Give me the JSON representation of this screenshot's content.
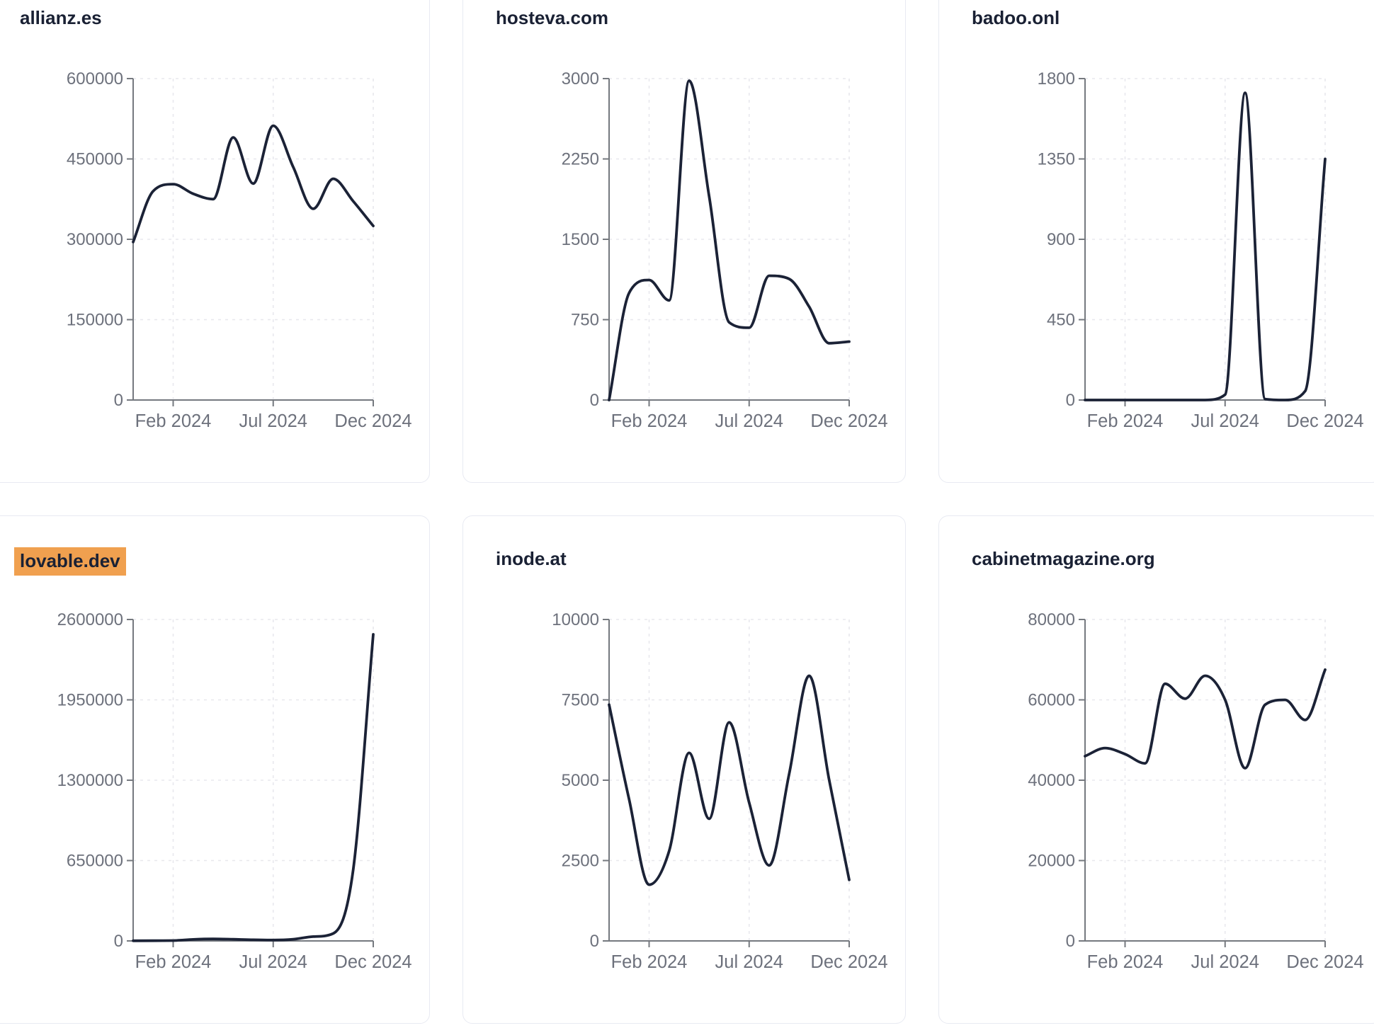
{
  "styles": {
    "line_color": "#1b2236",
    "highlight_color": "#F0A04F",
    "axis_color": "#75797f",
    "grid_color": "#e8e8ed",
    "tick_text_color": "#6d717c",
    "title_color": "#1a2134",
    "card_border_color": "#e8eaf2"
  },
  "chart_data": [
    {
      "type": "line",
      "title": "allianz.es",
      "highlighted": false,
      "x": [
        "Dec 2023",
        "Jan 2024",
        "Feb 2024",
        "Mar 2024",
        "Apr 2024",
        "May 2024",
        "Jun 2024",
        "Jul 2024",
        "Aug 2024",
        "Sep 2024",
        "Oct 2024",
        "Nov 2024",
        "Dec 2024"
      ],
      "values": [
        295000,
        390000,
        403000,
        385000,
        375000,
        490000,
        404000,
        512000,
        435000,
        357000,
        413000,
        371000,
        325000
      ],
      "ylim": [
        0,
        600000
      ],
      "y_ticks": [
        0,
        150000,
        300000,
        450000,
        600000
      ],
      "x_tick_labels": [
        "Feb 2024",
        "Jul 2024",
        "Dec 2024"
      ],
      "x_tick_indices": [
        2,
        7,
        12
      ],
      "grid": true,
      "legend": "none"
    },
    {
      "type": "line",
      "title": "hosteva.com",
      "highlighted": false,
      "x": [
        "Dec 2023",
        "Jan 2024",
        "Feb 2024",
        "Mar 2024",
        "Apr 2024",
        "May 2024",
        "Jun 2024",
        "Jul 2024",
        "Aug 2024",
        "Sep 2024",
        "Oct 2024",
        "Nov 2024",
        "Dec 2024"
      ],
      "values": [
        0,
        1000,
        1120,
        930,
        2980,
        1900,
        725,
        675,
        1160,
        1130,
        870,
        530,
        545
      ],
      "ylim": [
        0,
        3000
      ],
      "y_ticks": [
        0,
        750,
        1500,
        2250,
        3000
      ],
      "x_tick_labels": [
        "Feb 2024",
        "Jul 2024",
        "Dec 2024"
      ],
      "x_tick_indices": [
        2,
        7,
        12
      ],
      "grid": true,
      "legend": "none"
    },
    {
      "type": "line",
      "title": "badoo.onl",
      "highlighted": false,
      "x": [
        "Dec 2023",
        "Jan 2024",
        "Feb 2024",
        "Mar 2024",
        "Apr 2024",
        "May 2024",
        "Jun 2024",
        "Jul 2024",
        "Aug 2024",
        "Sep 2024",
        "Oct 2024",
        "Nov 2024",
        "Dec 2024"
      ],
      "values": [
        0,
        0,
        0,
        0,
        0,
        0,
        0,
        30,
        1720,
        5,
        0,
        50,
        1350
      ],
      "ylim": [
        0,
        1800
      ],
      "y_ticks": [
        0,
        450,
        900,
        1350,
        1800
      ],
      "x_tick_labels": [
        "Feb 2024",
        "Jul 2024",
        "Dec 2024"
      ],
      "x_tick_indices": [
        2,
        7,
        12
      ],
      "grid": true,
      "legend": "none"
    },
    {
      "type": "line",
      "title": "lovable.dev",
      "highlighted": true,
      "x": [
        "Dec 2023",
        "Jan 2024",
        "Feb 2024",
        "Mar 2024",
        "Apr 2024",
        "May 2024",
        "Jun 2024",
        "Jul 2024",
        "Aug 2024",
        "Sep 2024",
        "Oct 2024",
        "Nov 2024",
        "Dec 2024"
      ],
      "values": [
        1000,
        2000,
        3000,
        12000,
        16000,
        13000,
        9000,
        7000,
        13000,
        35000,
        60000,
        580000,
        2480000
      ],
      "ylim": [
        0,
        2600000
      ],
      "y_ticks": [
        0,
        650000,
        1300000,
        1950000,
        2600000
      ],
      "x_tick_labels": [
        "Feb 2024",
        "Jul 2024",
        "Dec 2024"
      ],
      "x_tick_indices": [
        2,
        7,
        12
      ],
      "grid": true,
      "legend": "none"
    },
    {
      "type": "line",
      "title": "inode.at",
      "highlighted": false,
      "x": [
        "Dec 2023",
        "Jan 2024",
        "Feb 2024",
        "Mar 2024",
        "Apr 2024",
        "May 2024",
        "Jun 2024",
        "Jul 2024",
        "Aug 2024",
        "Sep 2024",
        "Oct 2024",
        "Nov 2024",
        "Dec 2024"
      ],
      "values": [
        7350,
        4400,
        1750,
        2800,
        5850,
        3800,
        6800,
        4300,
        2350,
        5200,
        8250,
        5000,
        1900
      ],
      "ylim": [
        0,
        10000
      ],
      "y_ticks": [
        0,
        2500,
        5000,
        7500,
        10000
      ],
      "x_tick_labels": [
        "Feb 2024",
        "Jul 2024",
        "Dec 2024"
      ],
      "x_tick_indices": [
        2,
        7,
        12
      ],
      "grid": true,
      "legend": "none"
    },
    {
      "type": "line",
      "title": "cabinetmagazine.org",
      "highlighted": false,
      "x": [
        "Dec 2023",
        "Jan 2024",
        "Feb 2024",
        "Mar 2024",
        "Apr 2024",
        "May 2024",
        "Jun 2024",
        "Jul 2024",
        "Aug 2024",
        "Sep 2024",
        "Oct 2024",
        "Nov 2024",
        "Dec 2024"
      ],
      "values": [
        46000,
        48000,
        46500,
        44200,
        64000,
        60300,
        66000,
        60000,
        43000,
        58800,
        60000,
        55000,
        67500
      ],
      "ylim": [
        0,
        80000
      ],
      "y_ticks": [
        0,
        20000,
        40000,
        60000,
        80000
      ],
      "x_tick_labels": [
        "Feb 2024",
        "Jul 2024",
        "Dec 2024"
      ],
      "x_tick_indices": [
        2,
        7,
        12
      ],
      "grid": true,
      "legend": "none"
    }
  ]
}
